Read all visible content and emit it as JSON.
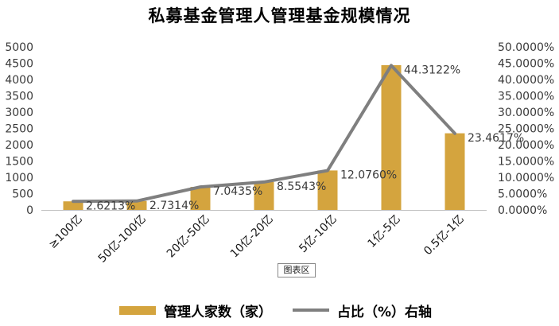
{
  "chart_data": {
    "type": "bar",
    "title": "私募基金管理人管理基金规模情况",
    "categories": [
      "≥100亿",
      "50亿-100亿",
      "20亿-50亿",
      "10亿-20亿",
      "5亿-10亿",
      "1亿-5亿",
      "0.5亿-1亿"
    ],
    "series": [
      {
        "name": "管理人家数（家）",
        "type": "bar",
        "axis": "left",
        "values": [
          263,
          274,
          706,
          857,
          1210,
          4440,
          2351
        ]
      },
      {
        "name": "占比（%）右轴",
        "type": "line",
        "axis": "right",
        "values": [
          2.6213,
          2.7314,
          7.0435,
          8.5543,
          12.076,
          44.3122,
          23.4617
        ],
        "data_labels": [
          "2.6213%",
          "2.7314%",
          "7.0435%",
          "8.5543%",
          "12.0760%",
          "44.3122%",
          "23.4617%"
        ]
      }
    ],
    "y_left": {
      "min": 0,
      "max": 5000,
      "step": 500,
      "tick_labels": [
        "0",
        "500",
        "1000",
        "1500",
        "2000",
        "2500",
        "3000",
        "3500",
        "4000",
        "4500",
        "5000"
      ]
    },
    "y_right": {
      "min": 0,
      "max": 50,
      "step": 5,
      "tick_labels": [
        "0.0000%",
        "5.0000%",
        "10.0000%",
        "15.0000%",
        "20.0000%",
        "25.0000%",
        "30.0000%",
        "35.0000%",
        "40.0000%",
        "45.0000%",
        "50.0000%"
      ]
    },
    "grid": false,
    "legend_position": "bottom",
    "colors": {
      "bar": "#D4A43E",
      "line": "#7F7F7F"
    }
  },
  "tooltip_label": "图表区"
}
